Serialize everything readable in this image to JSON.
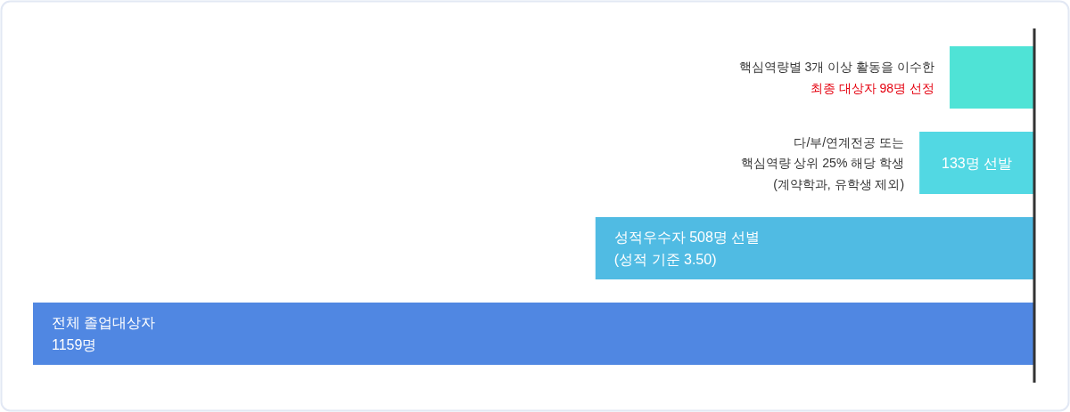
{
  "chart_data": {
    "type": "bar",
    "orientation": "horizontal",
    "categories": [
      "핵심역량별 3개 이상 활동을 이수한",
      "다/부/연계전공 또는\n핵심역량 상위 25% 해당 학생\n(계약학과, 유학생 제외)",
      "성적우수자 508명 선별\n(성적 기준 3.50)",
      "전체 졸업대상자\n1159명"
    ],
    "values": [
      98,
      133,
      508,
      1159
    ],
    "colors": [
      "#4fe3d6",
      "#52d8e3",
      "#50bbe3",
      "#5087e2"
    ],
    "value_labels": [
      "최종 대상자 98명 선정",
      "133명 선발",
      null,
      null
    ],
    "xlim": [
      1159,
      0
    ]
  }
}
